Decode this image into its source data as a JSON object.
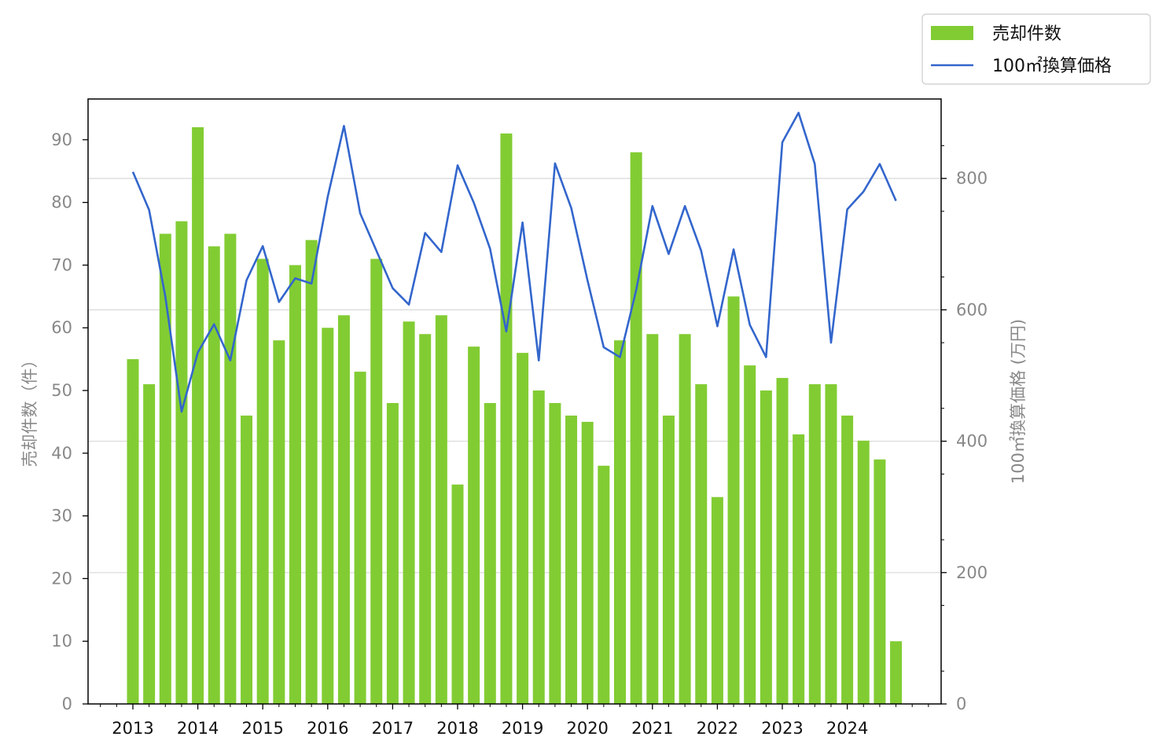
{
  "chart_data": {
    "type": "bar+line",
    "title": "",
    "x_tick_labels": [
      "2013",
      "2014",
      "2015",
      "2016",
      "2017",
      "2018",
      "2019",
      "2020",
      "2021",
      "2022",
      "2023",
      "2024"
    ],
    "quarters_per_year": 4,
    "y_left": {
      "label": "売却件数（件）",
      "range": [
        0,
        96.5
      ],
      "ticks": [
        0,
        10,
        20,
        30,
        40,
        50,
        60,
        70,
        80,
        90
      ]
    },
    "y_right": {
      "label": "100㎡換算価格 (万円)",
      "range": [
        0,
        921
      ],
      "ticks": [
        0,
        200,
        400,
        600,
        800
      ]
    },
    "grid": "horizontal, right axis",
    "legend": {
      "placement": "top-right, outside plot"
    },
    "series": [
      {
        "name": "売却件数",
        "kind": "bar",
        "axis": "left",
        "color": "#82cc33",
        "values": [
          55,
          51,
          75,
          77,
          92,
          73,
          75,
          46,
          71,
          58,
          70,
          74,
          60,
          62,
          53,
          71,
          48,
          61,
          59,
          62,
          35,
          57,
          48,
          91,
          56,
          50,
          48,
          46,
          45,
          38,
          58,
          88,
          59,
          46,
          59,
          51,
          33,
          65,
          54,
          50,
          52,
          43,
          51,
          51,
          46,
          42,
          39,
          10
        ]
      },
      {
        "name": "100㎡換算価格",
        "kind": "line",
        "axis": "right",
        "color": "#3366cc",
        "values": [
          810,
          752,
          620,
          445,
          535,
          578,
          523,
          645,
          697,
          612,
          648,
          640,
          772,
          880,
          747,
          690,
          633,
          608,
          717,
          688,
          820,
          763,
          693,
          567,
          733,
          523,
          823,
          755,
          645,
          543,
          528,
          630,
          758,
          685,
          758,
          690,
          575,
          692,
          577,
          528,
          855,
          900,
          822,
          550,
          753,
          780,
          822,
          766
        ]
      }
    ]
  }
}
